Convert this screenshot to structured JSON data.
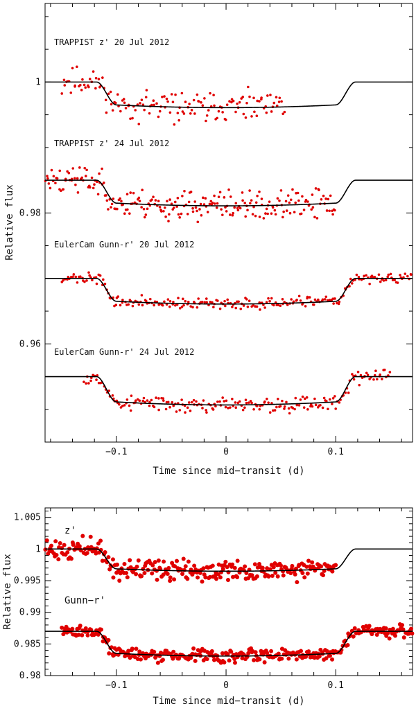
{
  "chart_data": [
    {
      "type": "scatter",
      "xlabel": "Time since mid−transit (d)",
      "ylabel": "Relative flux",
      "xlim": [
        -0.165,
        0.17
      ],
      "ylim": [
        0.945,
        1.012
      ],
      "x_ticks": [
        -0.1,
        0,
        0.1
      ],
      "x_tick_labels": [
        "−0.1",
        "0",
        "0.1"
      ],
      "y_ticks": [
        0.96,
        0.98,
        1.0
      ],
      "y_tick_labels": [
        "0.96",
        "0.98",
        "1"
      ],
      "series": [
        {
          "name": "TRAPPIST z' 20 Jul 2012",
          "label": "TRAPPIST z' 20 Jul 2012",
          "baseline": 1.0,
          "depth": 0.0038,
          "x_range": [
            -0.15,
            0.054
          ],
          "scatter": 0.0011,
          "n": 150,
          "seed": 11
        },
        {
          "name": "TRAPPIST z' 24 Jul 2012",
          "label": "TRAPPIST z' 24 Jul 2012",
          "baseline": 0.985,
          "depth": 0.0038,
          "x_range": [
            -0.165,
            0.1
          ],
          "scatter": 0.0011,
          "n": 240,
          "seed": 23
        },
        {
          "name": "EulerCam Gunn-r' 20 Jul 2012",
          "label": "EulerCam Gunn-r' 20 Jul 2012",
          "baseline": 0.97,
          "depth": 0.0038,
          "x_range": [
            -0.15,
            0.17
          ],
          "scatter": 0.0004,
          "n": 230,
          "seed": 37
        },
        {
          "name": "EulerCam Gunn-r' 24 Jul 2012",
          "label": "EulerCam Gunn-r' 24 Jul 2012",
          "baseline": 0.955,
          "depth": 0.0042,
          "x_range": [
            -0.13,
            0.15
          ],
          "scatter": 0.0006,
          "n": 200,
          "seed": 53
        }
      ]
    },
    {
      "type": "scatter",
      "xlabel": "Time since mid−transit (d)",
      "ylabel": "Relative flux",
      "xlim": [
        -0.165,
        0.17
      ],
      "ylim": [
        0.98,
        1.0065
      ],
      "x_ticks": [
        -0.1,
        0,
        0.1
      ],
      "x_tick_labels": [
        "−0.1",
        "0",
        "0.1"
      ],
      "y_ticks": [
        0.98,
        0.985,
        0.99,
        0.995,
        1.0,
        1.005
      ],
      "y_tick_labels": [
        "0.98",
        "0.985",
        "0.99",
        "0.995",
        "1",
        "1.005"
      ],
      "series": [
        {
          "name": "z'",
          "label": "z'",
          "baseline": 1.0,
          "depth": 0.0034,
          "x_range": [
            -0.165,
            0.1
          ],
          "scatter": 0.0008,
          "n": 260,
          "seed": 71
        },
        {
          "name": "Gunn-r'",
          "label": "Gunn−r'",
          "baseline": 0.987,
          "depth": 0.0038,
          "x_range": [
            -0.15,
            0.17
          ],
          "scatter": 0.0005,
          "n": 320,
          "seed": 89
        }
      ]
    }
  ],
  "model": {
    "ingress_start": -0.118,
    "ingress_end": -0.1,
    "egress_start": 0.1,
    "egress_end": 0.118
  },
  "colors": {
    "points": "#e00000",
    "model": "#000000"
  }
}
